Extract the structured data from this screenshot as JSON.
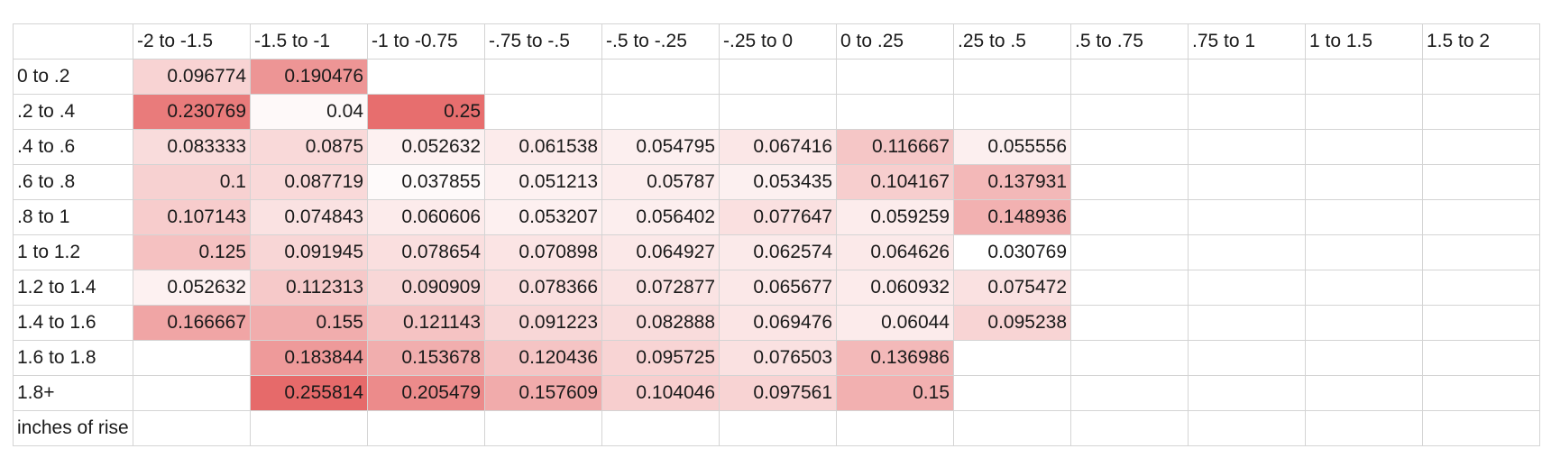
{
  "chart_data": {
    "type": "heatmap",
    "columns": [
      "-2 to -1.5",
      "-1.5 to -1",
      "-1 to -0.75",
      "-.75 to -.5",
      "-.5 to -.25",
      "-.25 to 0",
      "0 to .25",
      ".25 to .5",
      ".5 to .75",
      ".75 to 1",
      "1 to 1.5",
      "1.5 to 2"
    ],
    "rows": [
      "0 to .2",
      ".2 to .4",
      ".4 to .6",
      ".6 to .8",
      ".8 to 1",
      "1 to 1.2",
      "1.2 to 1.4",
      "1.4 to 1.6",
      "1.6 to 1.8",
      "1.8+"
    ],
    "values": [
      [
        "0.096774",
        "0.190476",
        null,
        null,
        null,
        null,
        null,
        null,
        null,
        null,
        null,
        null
      ],
      [
        "0.230769",
        "0.04",
        "0.25",
        null,
        null,
        null,
        null,
        null,
        null,
        null,
        null,
        null
      ],
      [
        "0.083333",
        "0.0875",
        "0.052632",
        "0.061538",
        "0.054795",
        "0.067416",
        "0.116667",
        "0.055556",
        null,
        null,
        null,
        null
      ],
      [
        "0.1",
        "0.087719",
        "0.037855",
        "0.051213",
        "0.05787",
        "0.053435",
        "0.104167",
        "0.137931",
        null,
        null,
        null,
        null
      ],
      [
        "0.107143",
        "0.074843",
        "0.060606",
        "0.053207",
        "0.056402",
        "0.077647",
        "0.059259",
        "0.148936",
        null,
        null,
        null,
        null
      ],
      [
        "0.125",
        "0.091945",
        "0.078654",
        "0.070898",
        "0.064927",
        "0.062574",
        "0.064626",
        "0.030769",
        null,
        null,
        null,
        null
      ],
      [
        "0.052632",
        "0.112313",
        "0.090909",
        "0.078366",
        "0.072877",
        "0.065677",
        "0.060932",
        "0.075472",
        null,
        null,
        null,
        null
      ],
      [
        "0.166667",
        "0.155",
        "0.121143",
        "0.091223",
        "0.082888",
        "0.069476",
        "0.06044",
        "0.095238",
        null,
        null,
        null,
        null
      ],
      [
        null,
        "0.183844",
        "0.153678",
        "0.120436",
        "0.095725",
        "0.076503",
        "0.136986",
        null,
        null,
        null,
        null,
        null
      ],
      [
        null,
        "0.255814",
        "0.205479",
        "0.157609",
        "0.104046",
        "0.097561",
        "0.15",
        null,
        null,
        null,
        null,
        null
      ]
    ],
    "footer_label": "inches of rise",
    "color_scale": {
      "low": "#ffffff",
      "high": "#e66a6a"
    }
  }
}
